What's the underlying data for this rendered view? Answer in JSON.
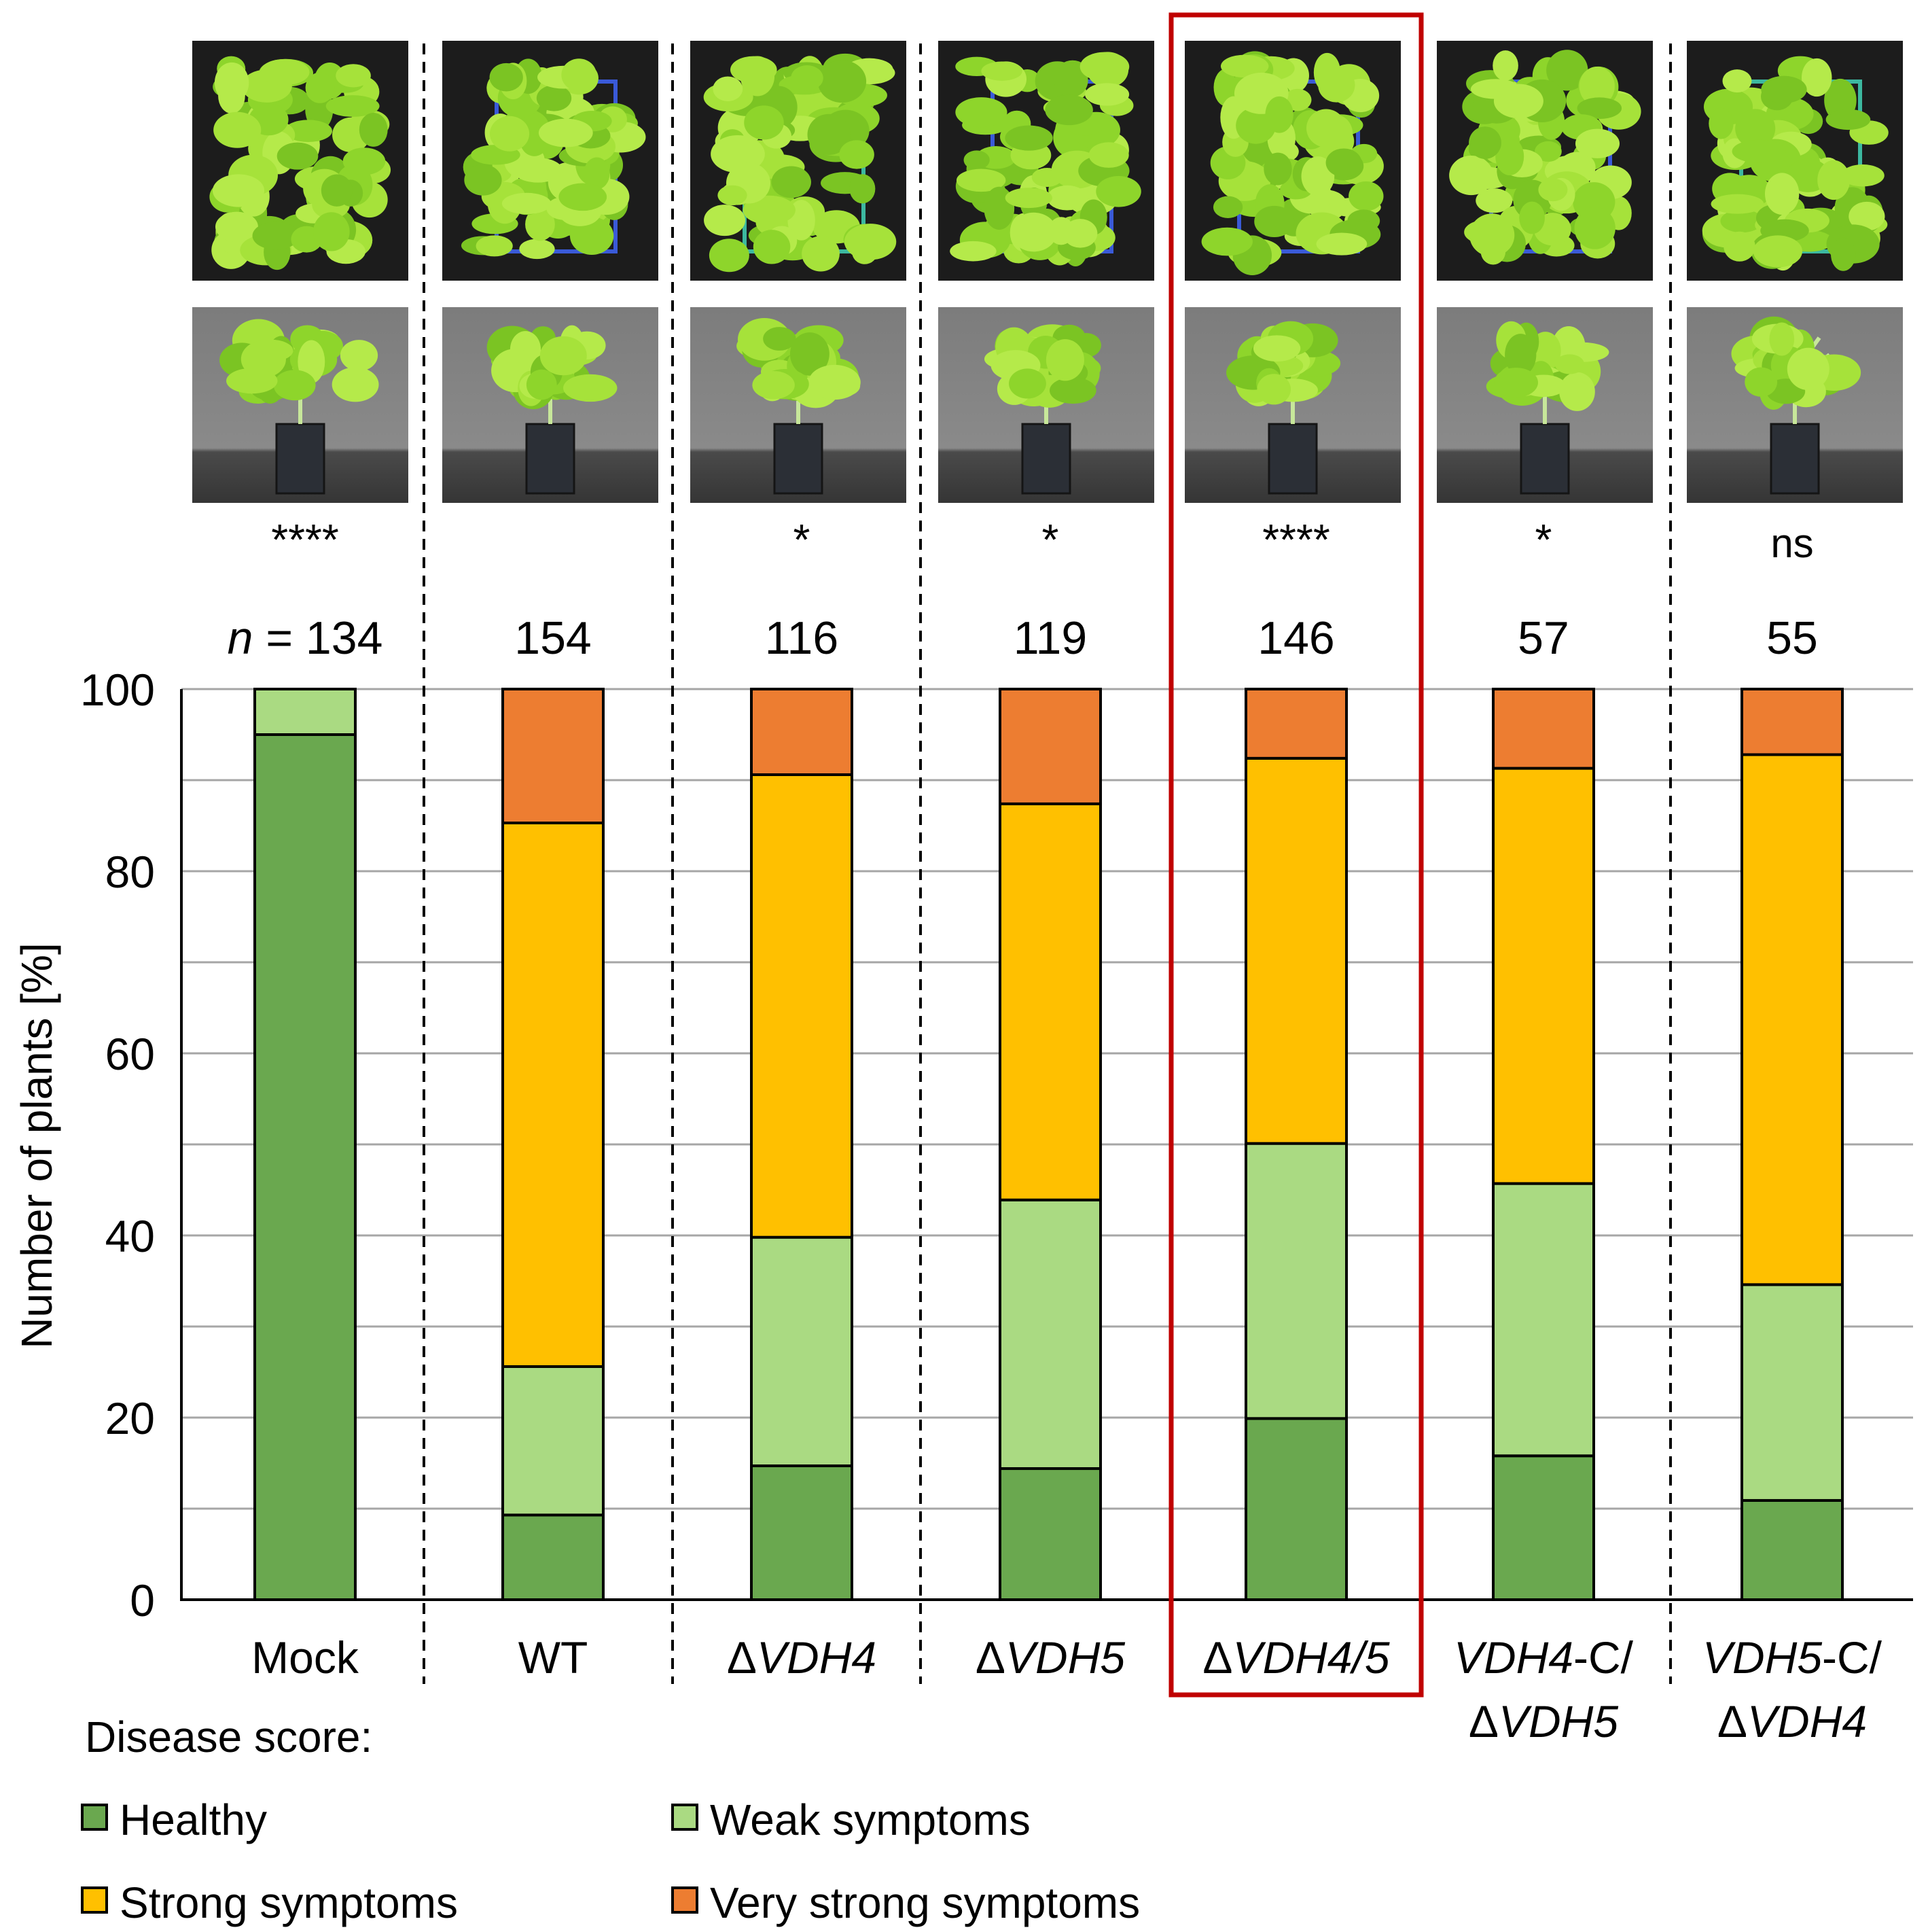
{
  "chart_data": {
    "type": "bar",
    "stacked": true,
    "ylabel": "Number of plants [%]",
    "ylim": [
      0,
      100
    ],
    "yticks": [
      0,
      20,
      40,
      60,
      80,
      100
    ],
    "grid": true,
    "n_prefix": "n",
    "n_equals": "=",
    "categories": [
      {
        "label": "Mock",
        "italic": false
      },
      {
        "label": "WT",
        "italic": false
      },
      {
        "label_parts": [
          {
            "t": "Δ",
            "i": false
          },
          {
            "t": "VDH4",
            "i": true
          }
        ]
      },
      {
        "label_parts": [
          {
            "t": "Δ",
            "i": false
          },
          {
            "t": "VDH5",
            "i": true
          }
        ]
      },
      {
        "label_parts": [
          {
            "t": "Δ",
            "i": false
          },
          {
            "t": "VDH4/5",
            "i": true
          }
        ]
      },
      {
        "label_parts": [
          {
            "t": "VDH4",
            "i": true
          },
          {
            "t": "-C/",
            "i": false
          }
        ],
        "label_line2_parts": [
          {
            "t": "Δ",
            "i": false
          },
          {
            "t": "VDH5",
            "i": true
          }
        ]
      },
      {
        "label_parts": [
          {
            "t": "VDH5",
            "i": true
          },
          {
            "t": "-C/",
            "i": false
          }
        ],
        "label_line2_parts": [
          {
            "t": "Δ",
            "i": false
          },
          {
            "t": "VDH4",
            "i": true
          }
        ]
      }
    ],
    "n": [
      "134",
      "154",
      "116",
      "119",
      "146",
      "57",
      "55"
    ],
    "significance": [
      "****",
      "",
      "*",
      "*",
      "****",
      "*",
      "ns"
    ],
    "series": [
      {
        "name": "Healthy",
        "color": "#6aa84f",
        "values": [
          95,
          9.3,
          14.7,
          14.4,
          19.9,
          15.8,
          10.9
        ]
      },
      {
        "name": "Weak symptoms",
        "color": "#aada82",
        "values": [
          5,
          16.3,
          25.1,
          29.5,
          30.2,
          29.9,
          23.7
        ]
      },
      {
        "name": "Strong symptoms",
        "color": "#ffc000",
        "values": [
          0,
          59.7,
          50.8,
          43.5,
          42.3,
          45.6,
          58.2
        ]
      },
      {
        "name": "Very strong symptoms",
        "color": "#ed7d31",
        "values": [
          0,
          14.7,
          9.4,
          12.6,
          7.6,
          8.7,
          7.2
        ]
      }
    ],
    "legend": {
      "title": "Disease score:",
      "placement": "bottom-left"
    },
    "highlight": {
      "category_index": 4,
      "color": "#c00000"
    }
  }
}
